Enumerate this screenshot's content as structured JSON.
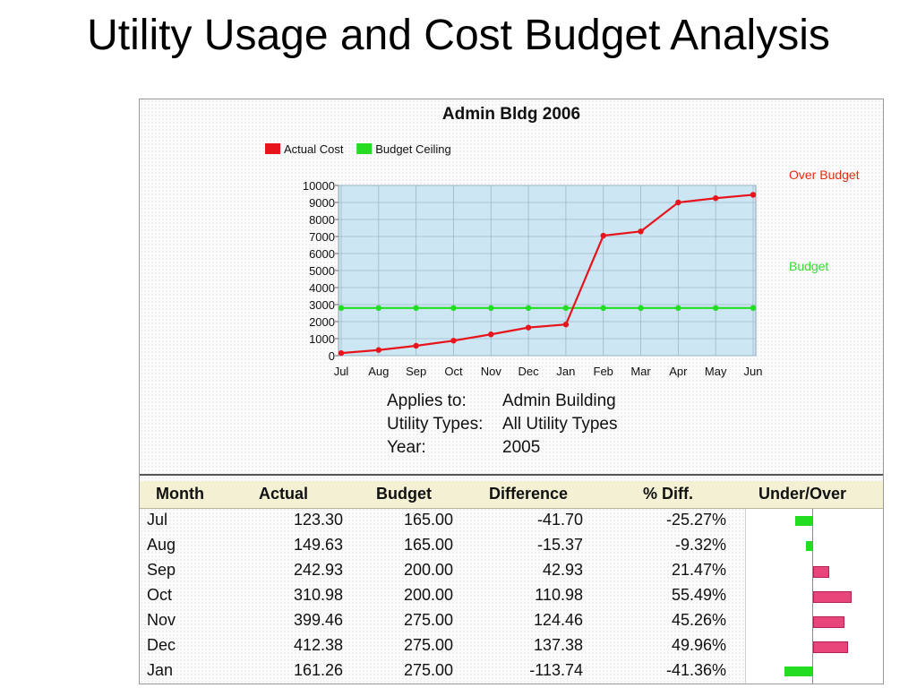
{
  "slide_title": "Utility Usage and Cost Budget Analysis",
  "annotations": {
    "over_budget": "Over Budget",
    "budget": "Budget",
    "over_color": "#e03010",
    "budget_color": "#33dd33"
  },
  "chart_data": {
    "type": "line",
    "title": "Admin Bldg 2006",
    "categories": [
      "Jul",
      "Aug",
      "Sep",
      "Oct",
      "Nov",
      "Dec",
      "Jan",
      "Feb",
      "Mar",
      "Apr",
      "May",
      "Jun"
    ],
    "series": [
      {
        "name": "Actual Cost",
        "color": "#e8141c",
        "values": [
          150,
          330,
          580,
          880,
          1250,
          1650,
          1830,
          7050,
          7300,
          9000,
          9250,
          9450
        ]
      },
      {
        "name": "Budget Ceiling",
        "color": "#22dd22",
        "values": [
          2800,
          2800,
          2800,
          2800,
          2800,
          2800,
          2800,
          2800,
          2800,
          2800,
          2800,
          2800
        ]
      }
    ],
    "yticks": [
      0,
      1000,
      2000,
      3000,
      4000,
      5000,
      6000,
      7000,
      8000,
      9000,
      10000
    ],
    "ylim": [
      0,
      10000
    ],
    "legend": "top-left",
    "grid": true,
    "plot_bg": "#cce6f4"
  },
  "info": [
    {
      "label": "Applies to:",
      "value": "Admin Building"
    },
    {
      "label": "Utility Types:",
      "value": "All Utility Types"
    },
    {
      "label": "Year:",
      "value": "2005"
    }
  ],
  "table": {
    "headers": [
      "Month",
      "Actual",
      "Budget",
      "Difference",
      "% Diff.",
      "Under/Over"
    ],
    "rows": [
      {
        "month": "Jul",
        "actual": "123.30",
        "budget": "165.00",
        "diff": "-41.70",
        "pct": "-25.27%",
        "pct_value": -25.27
      },
      {
        "month": "Aug",
        "actual": "149.63",
        "budget": "165.00",
        "diff": "-15.37",
        "pct": "-9.32%",
        "pct_value": -9.32
      },
      {
        "month": "Sep",
        "actual": "242.93",
        "budget": "200.00",
        "diff": "42.93",
        "pct": "21.47%",
        "pct_value": 21.47
      },
      {
        "month": "Oct",
        "actual": "310.98",
        "budget": "200.00",
        "diff": "110.98",
        "pct": "55.49%",
        "pct_value": 55.49
      },
      {
        "month": "Nov",
        "actual": "399.46",
        "budget": "275.00",
        "diff": "124.46",
        "pct": "45.26%",
        "pct_value": 45.26
      },
      {
        "month": "Dec",
        "actual": "412.38",
        "budget": "275.00",
        "diff": "137.38",
        "pct": "49.96%",
        "pct_value": 49.96
      },
      {
        "month": "Jan",
        "actual": "161.26",
        "budget": "275.00",
        "diff": "-113.74",
        "pct": "-41.36%",
        "pct_value": -41.36
      }
    ],
    "under_color": "#22dd22",
    "over_color": "#e8457a"
  }
}
